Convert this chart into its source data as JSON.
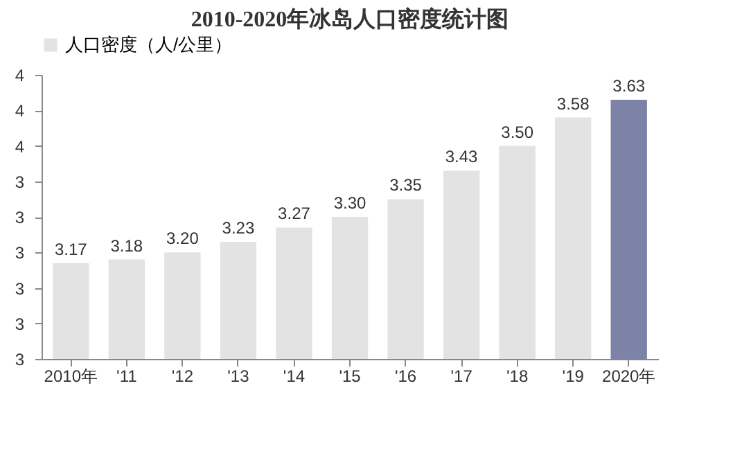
{
  "chart_data": {
    "type": "bar",
    "title": "2010-2020年冰岛人口密度统计图",
    "categories": [
      "2010年",
      "'11",
      "'12",
      "'13",
      "'14",
      "'15",
      "'16",
      "'17",
      "'18",
      "'19",
      "2020年"
    ],
    "series": [
      {
        "name": "人口密度（人/公里）",
        "colors": [
          "#e3e3e3",
          "#e3e3e3",
          "#e3e3e3",
          "#e3e3e3",
          "#e3e3e3",
          "#e3e3e3",
          "#e3e3e3",
          "#e3e3e3",
          "#e3e3e3",
          "#e3e3e3",
          "#7d83a6"
        ],
        "values": [
          3.17,
          3.18,
          3.2,
          3.23,
          3.27,
          3.3,
          3.35,
          3.43,
          3.5,
          3.58,
          3.63
        ],
        "value_labels": [
          "3.17",
          "3.18",
          "3.20",
          "3.23",
          "3.27",
          "3.30",
          "3.35",
          "3.43",
          "3.50",
          "3.58",
          "3.63"
        ]
      }
    ],
    "ylim": [
      2.9,
      3.7
    ],
    "yticks": [
      {
        "value": 2.9,
        "label": "3"
      },
      {
        "value": 3.0,
        "label": "3"
      },
      {
        "value": 3.1,
        "label": "3"
      },
      {
        "value": 3.2,
        "label": "3"
      },
      {
        "value": 3.3,
        "label": "3"
      },
      {
        "value": 3.4,
        "label": "3"
      },
      {
        "value": 3.5,
        "label": "4"
      },
      {
        "value": 3.6,
        "label": "4"
      },
      {
        "value": 3.7,
        "label": "4"
      }
    ],
    "legend": "top",
    "grid": false
  }
}
